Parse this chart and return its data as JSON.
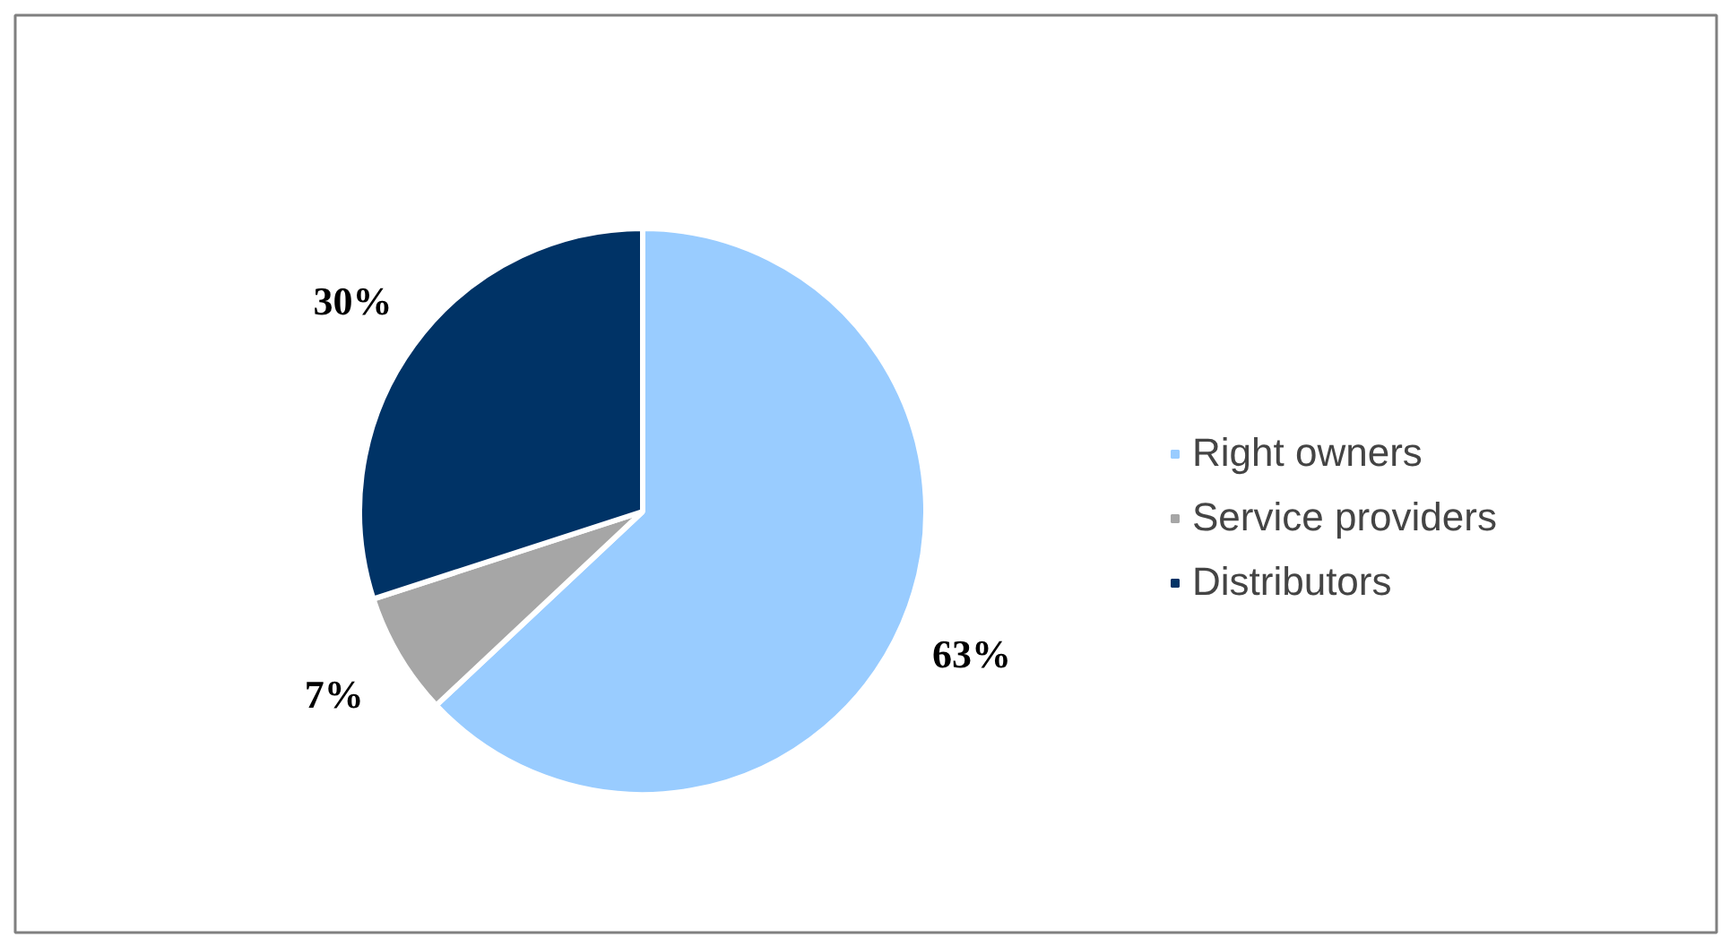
{
  "chart_data": {
    "type": "pie",
    "categories": [
      "Right owners",
      "Service providers",
      "Distributors"
    ],
    "values": [
      63,
      7,
      30
    ],
    "colors": [
      "#99ccff",
      "#a6a6a6",
      "#003366"
    ],
    "value_labels": [
      "63%",
      "7%",
      "30%"
    ],
    "legend": "right"
  }
}
